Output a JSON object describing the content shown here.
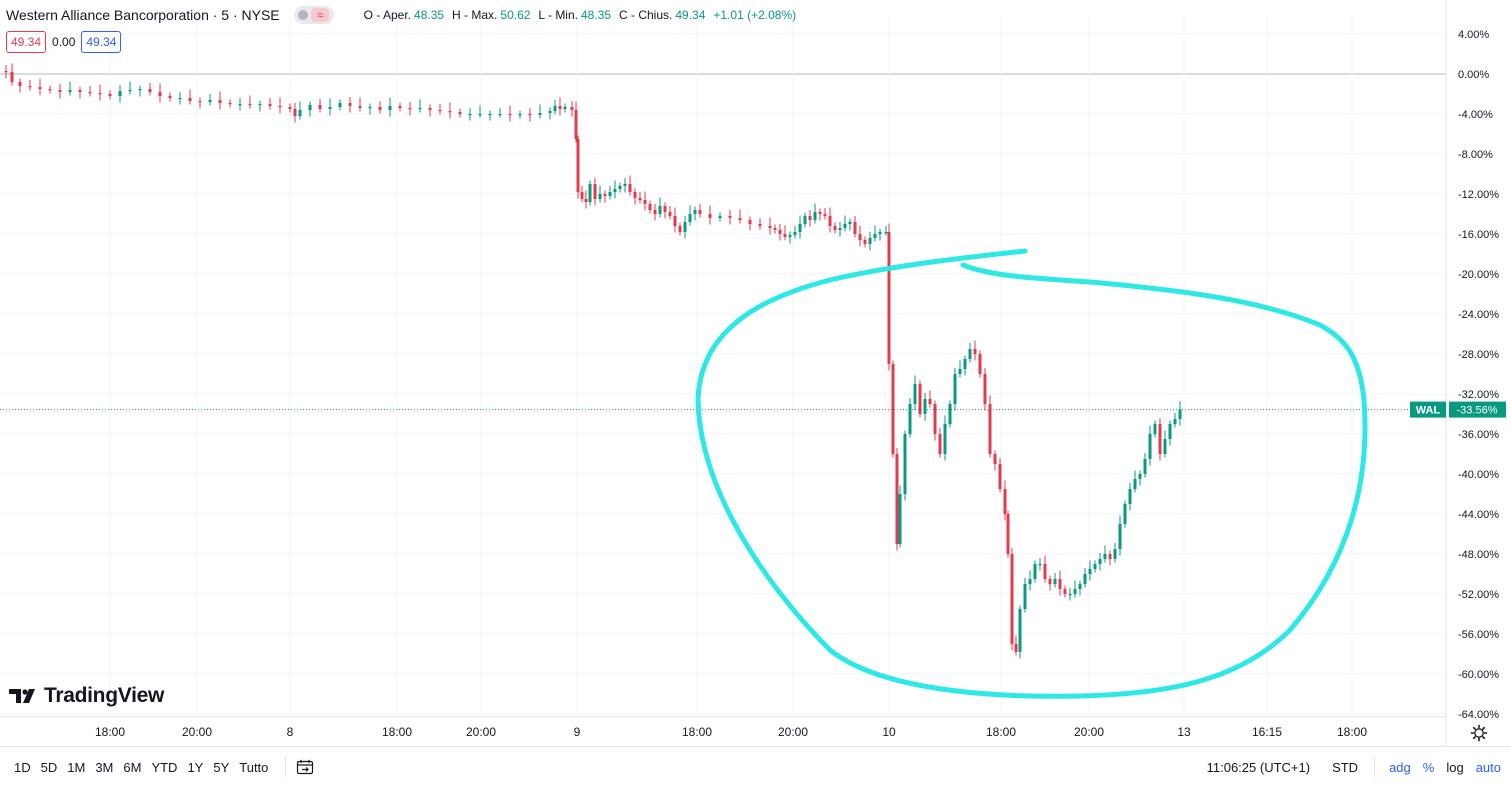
{
  "header": {
    "title": "Western Alliance Bancorporation · 5 · NYSE",
    "ohlc": [
      {
        "label": "O - Aper.",
        "value": "48.35"
      },
      {
        "label": "H - Max.",
        "value": "50.62"
      },
      {
        "label": "L - Min.",
        "value": "48.35"
      },
      {
        "label": "C - Chius.",
        "value": "49.34"
      },
      {
        "label": "",
        "value": "+1.01 (+2.08%)"
      }
    ],
    "pill_icon": "wave-icon"
  },
  "quote": {
    "sell": "49.34",
    "spread": "0.00",
    "buy": "49.34"
  },
  "logo": {
    "text": "TradingView",
    "icon": "tradingview-logo-icon"
  },
  "price_tag": {
    "symbol": "WAL",
    "value": "-33.56%"
  },
  "colors": {
    "up": "#089981",
    "down": "#e23b4e",
    "grid": "#f0f3fa",
    "baseline": "#b2b5be",
    "annotation": "#2ee8e8",
    "tag": "#089981"
  },
  "toolbar": {
    "ranges": [
      "1D",
      "5D",
      "1M",
      "3M",
      "6M",
      "YTD",
      "1Y",
      "5Y",
      "Tutto"
    ],
    "compare_icon": "date-range-icon",
    "time": "11:06:25 (UTC+1)",
    "session": "STD",
    "options": [
      "adg",
      "%",
      "log",
      "auto"
    ],
    "settings_icon": "gear-icon"
  },
  "chart_data": {
    "type": "candlestick",
    "scale": "percent",
    "ylim": [
      -64,
      4
    ],
    "y_ticks": [
      "4.00%",
      "0.00%",
      "-4.00%",
      "-8.00%",
      "-12.00%",
      "-16.00%",
      "-20.00%",
      "-24.00%",
      "-28.00%",
      "-32.00%",
      "-36.00%",
      "-40.00%",
      "-44.00%",
      "-48.00%",
      "-52.00%",
      "-56.00%",
      "-60.00%",
      "-64.00%"
    ],
    "x_ticks": [
      "18:00",
      "20:00",
      "8",
      "18:00",
      "20:00",
      "9",
      "18:00",
      "20:00",
      "10",
      "18:00",
      "20:00",
      "13",
      "16:15",
      "18:00"
    ],
    "grid": true,
    "last_value": -33.56,
    "session_points": [
      [
        0,
        0.3
      ],
      [
        6,
        0.2
      ],
      [
        12,
        -0.8
      ],
      [
        20,
        -1.2
      ],
      [
        30,
        -1.3
      ],
      [
        40,
        -1.5
      ],
      [
        50,
        -1.6
      ],
      [
        60,
        -1.8
      ],
      [
        70,
        -1.6
      ],
      [
        80,
        -1.8
      ],
      [
        90,
        -1.9
      ],
      [
        100,
        -2.0
      ],
      [
        110,
        -2.2
      ],
      [
        120,
        -1.7
      ],
      [
        130,
        -1.6
      ],
      [
        140,
        -1.5
      ],
      [
        150,
        -1.8
      ],
      [
        160,
        -2.2
      ],
      [
        170,
        -2.4
      ],
      [
        180,
        -2.4
      ],
      [
        190,
        -2.7
      ],
      [
        200,
        -2.8
      ],
      [
        210,
        -2.6
      ],
      [
        220,
        -2.9
      ],
      [
        230,
        -3.0
      ],
      [
        240,
        -3.0
      ],
      [
        250,
        -3.1
      ],
      [
        260,
        -3.0
      ],
      [
        270,
        -3.2
      ],
      [
        280,
        -3.3
      ],
      [
        290,
        -3.5
      ],
      [
        295,
        -4.2
      ],
      [
        300,
        -3.6
      ],
      [
        310,
        -3.1
      ],
      [
        320,
        -3.5
      ],
      [
        330,
        -3.3
      ],
      [
        340,
        -2.9
      ],
      [
        350,
        -3.2
      ],
      [
        360,
        -3.4
      ],
      [
        370,
        -3.3
      ],
      [
        380,
        -3.6
      ],
      [
        390,
        -3.2
      ],
      [
        400,
        -3.4
      ],
      [
        410,
        -3.5
      ],
      [
        420,
        -3.4
      ],
      [
        430,
        -3.6
      ],
      [
        440,
        -3.7
      ],
      [
        450,
        -3.8
      ],
      [
        460,
        -4.0
      ],
      [
        470,
        -4.0
      ],
      [
        480,
        -4.0
      ],
      [
        490,
        -4.0
      ],
      [
        500,
        -4.0
      ],
      [
        510,
        -4.1
      ],
      [
        520,
        -4.0
      ],
      [
        530,
        -4.1
      ],
      [
        540,
        -3.9
      ],
      [
        550,
        -3.7
      ],
      [
        555,
        -3.2
      ],
      [
        560,
        -3.5
      ],
      [
        565,
        -3.3
      ],
      [
        572,
        -3.6
      ],
      [
        576,
        -6.5
      ],
      [
        578,
        -11.8
      ],
      [
        582,
        -12.5
      ],
      [
        586,
        -12.8
      ],
      [
        590,
        -11.0
      ],
      [
        595,
        -12.5
      ],
      [
        600,
        -12.0
      ],
      [
        605,
        -12.2
      ],
      [
        610,
        -11.8
      ],
      [
        615,
        -11.5
      ],
      [
        620,
        -11.2
      ],
      [
        625,
        -11.0
      ],
      [
        630,
        -11.8
      ],
      [
        635,
        -12.4
      ],
      [
        640,
        -12.6
      ],
      [
        645,
        -13.0
      ],
      [
        650,
        -13.6
      ],
      [
        655,
        -14.0
      ],
      [
        660,
        -13.2
      ],
      [
        665,
        -13.8
      ],
      [
        670,
        -14.2
      ],
      [
        675,
        -15.2
      ],
      [
        680,
        -15.8
      ],
      [
        685,
        -14.8
      ],
      [
        690,
        -14.0
      ],
      [
        695,
        -13.6
      ],
      [
        700,
        -14.0
      ],
      [
        710,
        -14.4
      ],
      [
        720,
        -14.2
      ],
      [
        730,
        -14.4
      ],
      [
        740,
        -14.6
      ],
      [
        750,
        -15.0
      ],
      [
        760,
        -15.2
      ],
      [
        770,
        -15.4
      ],
      [
        775,
        -15.6
      ],
      [
        780,
        -16.0
      ],
      [
        785,
        -16.3
      ],
      [
        790,
        -16.1
      ],
      [
        795,
        -15.8
      ],
      [
        800,
        -15.0
      ],
      [
        805,
        -14.2
      ],
      [
        810,
        -14.6
      ],
      [
        815,
        -13.8
      ],
      [
        820,
        -14.0
      ],
      [
        825,
        -14.2
      ],
      [
        830,
        -15.2
      ],
      [
        835,
        -15.6
      ],
      [
        840,
        -15.4
      ],
      [
        845,
        -15.0
      ],
      [
        850,
        -14.8
      ],
      [
        855,
        -16.0
      ],
      [
        860,
        -16.6
      ],
      [
        865,
        -17.0
      ],
      [
        870,
        -16.4
      ],
      [
        875,
        -16.0
      ],
      [
        880,
        -15.8
      ],
      [
        886,
        -15.8
      ],
      [
        889,
        -29.0
      ],
      [
        893,
        -38.0
      ],
      [
        897,
        -47.0
      ],
      [
        900,
        -42.0
      ],
      [
        905,
        -36.0
      ],
      [
        910,
        -33.0
      ],
      [
        915,
        -31.0
      ],
      [
        920,
        -34.0
      ],
      [
        925,
        -32.5
      ],
      [
        930,
        -33.0
      ],
      [
        935,
        -36.0
      ],
      [
        940,
        -38.0
      ],
      [
        945,
        -35.0
      ],
      [
        950,
        -33.0
      ],
      [
        955,
        -30.0
      ],
      [
        960,
        -29.5
      ],
      [
        965,
        -28.5
      ],
      [
        970,
        -27.5
      ],
      [
        975,
        -28.0
      ],
      [
        980,
        -30.0
      ],
      [
        985,
        -33.0
      ],
      [
        990,
        -38.0
      ],
      [
        995,
        -39.0
      ],
      [
        1000,
        -41.5
      ],
      [
        1005,
        -44.0
      ],
      [
        1008,
        -48.0
      ],
      [
        1012,
        -57.0
      ],
      [
        1016,
        -57.8
      ],
      [
        1020,
        -53.5
      ],
      [
        1025,
        -51.0
      ],
      [
        1030,
        -50.5
      ],
      [
        1035,
        -49.0
      ],
      [
        1040,
        -49.0
      ],
      [
        1045,
        -50.5
      ],
      [
        1050,
        -51.0
      ],
      [
        1055,
        -50.5
      ],
      [
        1060,
        -51.5
      ],
      [
        1065,
        -52.0
      ],
      [
        1070,
        -52.0
      ],
      [
        1075,
        -51.5
      ],
      [
        1080,
        -51.0
      ],
      [
        1085,
        -50.0
      ],
      [
        1090,
        -49.5
      ],
      [
        1095,
        -49.0
      ],
      [
        1100,
        -48.5
      ],
      [
        1105,
        -48.0
      ],
      [
        1110,
        -48.5
      ],
      [
        1115,
        -47.5
      ],
      [
        1120,
        -45.0
      ],
      [
        1125,
        -43.0
      ],
      [
        1130,
        -41.5
      ],
      [
        1135,
        -40.5
      ],
      [
        1140,
        -40.0
      ],
      [
        1145,
        -38.5
      ],
      [
        1150,
        -36.0
      ],
      [
        1155,
        -35.0
      ],
      [
        1160,
        -38.0
      ],
      [
        1165,
        -36.5
      ],
      [
        1170,
        -35.0
      ],
      [
        1175,
        -34.5
      ],
      [
        1180,
        -33.56
      ]
    ]
  }
}
